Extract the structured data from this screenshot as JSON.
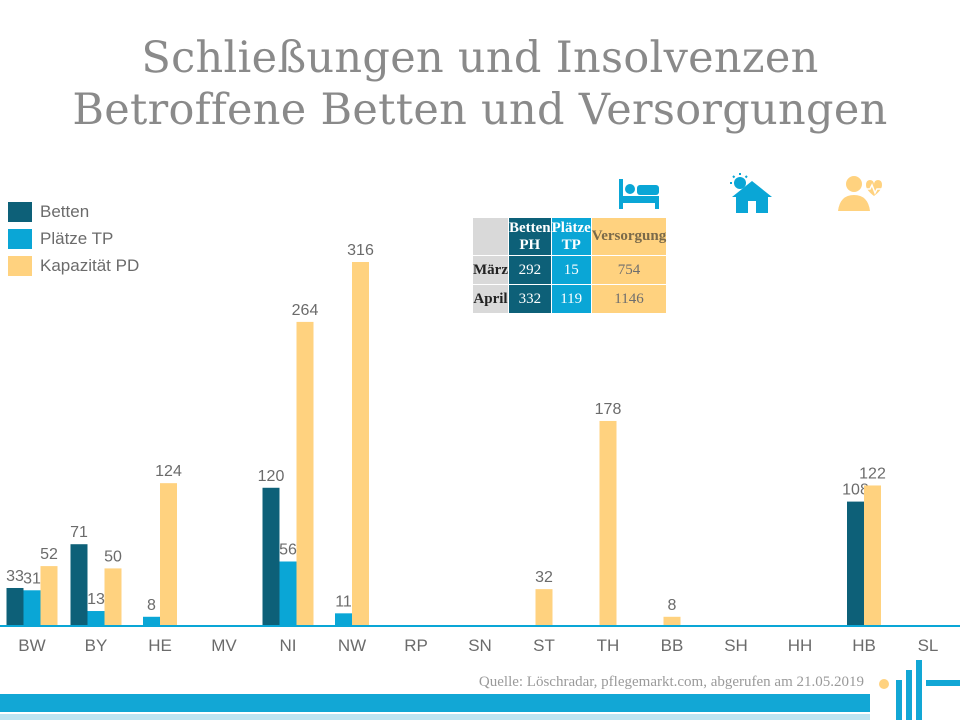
{
  "title": {
    "line1": "Schließungen und Insolvenzen",
    "line2": "Betroffene Betten und Versorgungen"
  },
  "colors": {
    "betten": "#0d6078",
    "plaetze": "#0aa6d6",
    "kapazitaet": "#ffd27f",
    "axis": "#0aa6d6",
    "label": "#6b6b6b"
  },
  "legend": [
    {
      "label": "Betten"
    },
    {
      "label": "Plätze TP"
    },
    {
      "label": "Kapazität PD"
    }
  ],
  "summary_table": {
    "icons": [
      "bed-icon",
      "sun-house-icon",
      "caregiver-heart-icon"
    ],
    "headers": [
      "Betten PH",
      "Plätze TP",
      "Versorgung"
    ],
    "rows": [
      {
        "label": "März",
        "values": [
          "292",
          "15",
          "754"
        ]
      },
      {
        "label": "April",
        "values": [
          "332",
          "119",
          "1146"
        ]
      }
    ]
  },
  "chart_data": {
    "type": "bar",
    "categories": [
      "BW",
      "BY",
      "HE",
      "MV",
      "NI",
      "NW",
      "RP",
      "SN",
      "ST",
      "TH",
      "BB",
      "SH",
      "HH",
      "HB",
      "SL"
    ],
    "series": [
      {
        "name": "Betten",
        "values": [
          33,
          71,
          null,
          null,
          120,
          null,
          null,
          null,
          null,
          null,
          null,
          null,
          null,
          108,
          null
        ]
      },
      {
        "name": "Plätze TP",
        "values": [
          31,
          13,
          8,
          null,
          56,
          11,
          null,
          null,
          null,
          null,
          null,
          null,
          null,
          null,
          null
        ]
      },
      {
        "name": "Kapazität PD",
        "values": [
          52,
          50,
          124,
          null,
          264,
          316,
          null,
          null,
          32,
          178,
          8,
          null,
          null,
          122,
          null
        ]
      }
    ],
    "title": "Schließungen und Insolvenzen Betroffene Betten und Versorgungen",
    "xlabel": "",
    "ylabel": "",
    "ylim": [
      0,
      330
    ],
    "grid": false,
    "legend_position": "top-left"
  },
  "source": "Quelle: Löschradar, pflegemarkt.com, abgerufen am 21.05.2019"
}
